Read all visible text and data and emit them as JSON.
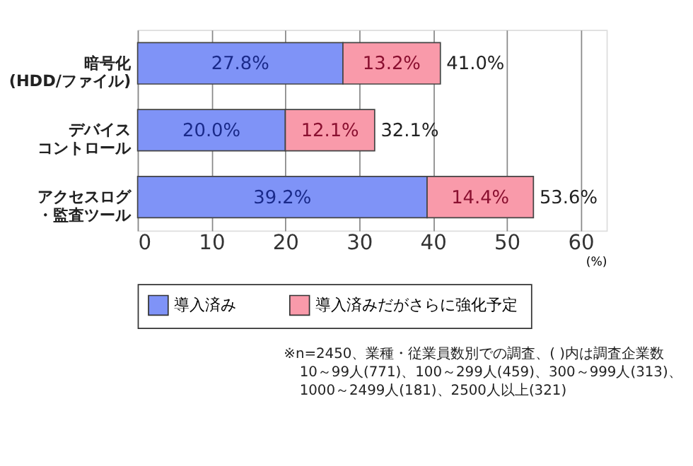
{
  "chart_data": {
    "type": "bar",
    "orientation": "horizontal",
    "stacked": true,
    "categories": [
      "暗号化(HDD/ファイル)",
      "デバイスコントロール",
      "アクセスログ・監査ツール"
    ],
    "series": [
      {
        "name": "導入済み",
        "color": "#7f93f7",
        "values": [
          27.8,
          20.0,
          39.2
        ],
        "value_labels": [
          "27.8%",
          "20.0%",
          "39.2%"
        ]
      },
      {
        "name": "導入済みだがさらに強化予定",
        "color": "#f99aaa",
        "values": [
          13.2,
          12.1,
          14.4
        ],
        "value_labels": [
          "13.2%",
          "12.1%",
          "14.4%"
        ]
      }
    ],
    "totals": [
      "41.0%",
      "32.1%",
      "53.6%"
    ],
    "xlabel": "(%)",
    "xlim": [
      0,
      63.5
    ],
    "xticks": [
      0,
      10,
      20,
      30,
      40,
      50,
      60
    ],
    "grid": "x",
    "legend": "bottom",
    "annotations": [
      "※n=2450、業種・従業員数別での調査、( )内は調査企業数",
      "10～99人(771)、100～299人(459)、300～999人(313)、",
      "1000～2499人(181)、2500人以上(321)"
    ]
  }
}
